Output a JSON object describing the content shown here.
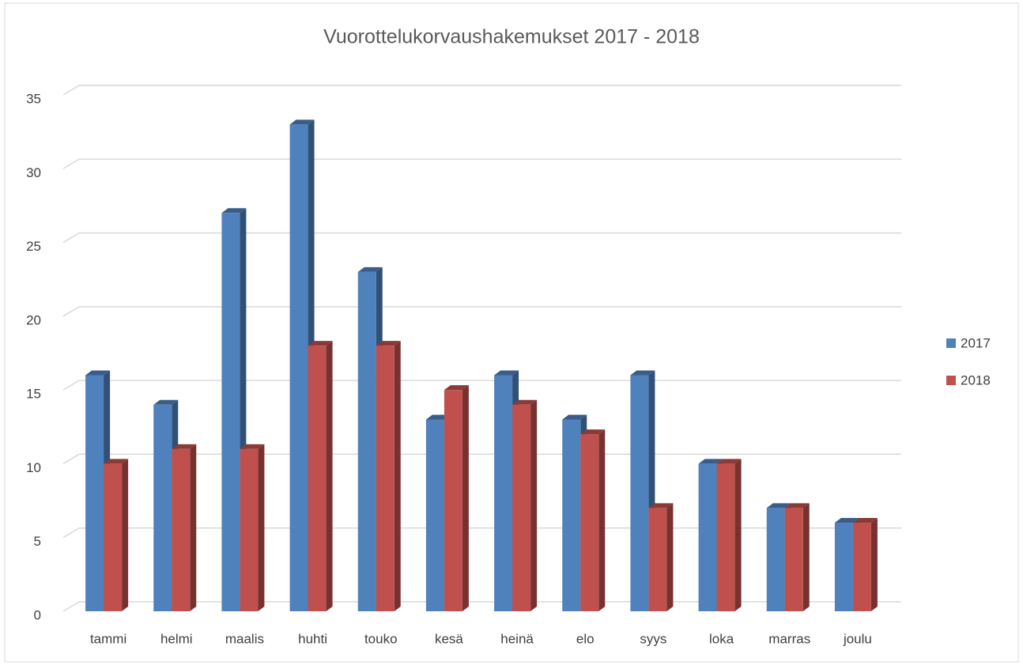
{
  "chart_data": {
    "type": "bar3d",
    "title": "Vuorottelukorvaushakemukset 2017 - 2018",
    "categories": [
      "tammi",
      "helmi",
      "maalis",
      "huhti",
      "touko",
      "kesä",
      "heinä",
      "elo",
      "syys",
      "loka",
      "marras",
      "joulu"
    ],
    "series": [
      {
        "name": "2017",
        "color": "#4f81bd",
        "values": [
          16,
          14,
          27,
          33,
          23,
          13,
          16,
          13,
          16,
          10,
          7,
          6
        ]
      },
      {
        "name": "2018",
        "color": "#c0504d",
        "values": [
          10,
          11,
          11,
          18,
          18,
          15,
          14,
          12,
          7,
          10,
          7,
          6
        ]
      }
    ],
    "ylim": [
      0,
      35
    ],
    "yticks": [
      0,
      5,
      10,
      15,
      20,
      25,
      30,
      35
    ],
    "grid": true,
    "legend": "right"
  }
}
